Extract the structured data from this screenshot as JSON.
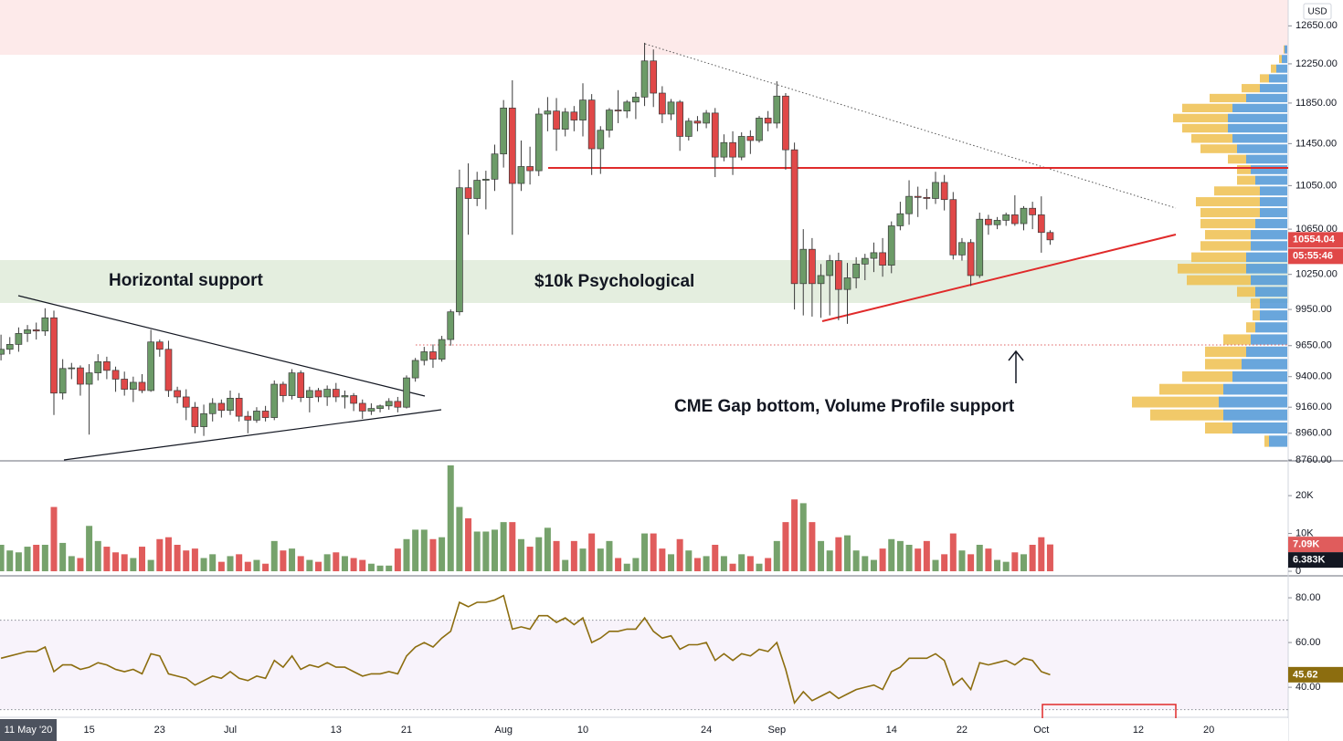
{
  "chart_data": {
    "type": "candlestick",
    "currency": "USD",
    "cursor_date_label": "11 May '20",
    "countdown": "05:55:46",
    "annotations": [
      "Horizontal support",
      "$10k Psychological",
      "CME Gap bottom, Volume Profile support"
    ],
    "categories": [
      null,
      null,
      null,
      null,
      null,
      null,
      null,
      null,
      null,
      null,
      "15",
      null,
      null,
      null,
      null,
      null,
      null,
      null,
      "23",
      null,
      null,
      null,
      null,
      null,
      null,
      null,
      "Jul",
      null,
      null,
      null,
      null,
      null,
      null,
      null,
      null,
      null,
      null,
      null,
      "13",
      null,
      null,
      null,
      null,
      null,
      null,
      null,
      "21",
      null,
      null,
      null,
      null,
      null,
      null,
      null,
      null,
      null,
      null,
      "Aug",
      null,
      null,
      null,
      null,
      null,
      null,
      null,
      null,
      "10",
      null,
      null,
      null,
      null,
      null,
      null,
      null,
      null,
      null,
      null,
      null,
      null,
      null,
      "24",
      null,
      null,
      null,
      null,
      null,
      null,
      null,
      "Sep",
      null,
      null,
      null,
      null,
      null,
      null,
      null,
      null,
      null,
      null,
      null,
      null,
      "14",
      null,
      null,
      null,
      null,
      null,
      null,
      null,
      "22",
      null,
      null,
      null,
      null,
      null,
      null,
      null,
      null,
      "Oct",
      null,
      null,
      null,
      null,
      null,
      null,
      null,
      null,
      null,
      null,
      "12",
      null,
      null,
      null,
      null,
      null,
      null,
      null,
      "20"
    ],
    "open": [
      9580,
      9620,
      9660,
      9750,
      9780,
      9770,
      9880,
      9270,
      9465,
      9470,
      9340,
      9430,
      9520,
      9450,
      9380,
      9300,
      9355,
      9290,
      9680,
      9620,
      9290,
      9240,
      9160,
      9010,
      9110,
      9190,
      9135,
      9230,
      9090,
      9060,
      9130,
      9080,
      9340,
      9250,
      9430,
      9235,
      9290,
      9240,
      9300,
      9240,
      9250,
      9190,
      9130,
      9150,
      9170,
      9205,
      9160,
      9390,
      9530,
      9600,
      9540,
      9700,
      9930,
      11030,
      10930,
      11100,
      11110,
      11350,
      11800,
      11070,
      11230,
      11190,
      11740,
      11770,
      11590,
      11760,
      11680,
      11880,
      11400,
      11580,
      11780,
      11770,
      11860,
      11910,
      12280,
      11950,
      11740,
      11860,
      11520,
      11670,
      11650,
      11750,
      11320,
      11460,
      11320,
      11520,
      11480,
      11700,
      11650,
      11920,
      11390,
      10170,
      10470,
      10170,
      10240,
      10370,
      10120,
      10220,
      10340,
      10390,
      10440,
      10330,
      10680,
      10790,
      10950,
      10940,
      10930,
      11080,
      10920,
      10420,
      10530,
      10240,
      10740,
      10690,
      10730,
      10780,
      10700,
      10840,
      10780,
      10620,
      null,
      null,
      null,
      null,
      null,
      null,
      null,
      null,
      null,
      null,
      null,
      null,
      null,
      null,
      null,
      null,
      null,
      null
    ],
    "high": [
      9740,
      9720,
      9800,
      9820,
      9840,
      9960,
      9940,
      9540,
      9510,
      9490,
      9500,
      9580,
      9560,
      9480,
      9440,
      9400,
      9420,
      9780,
      9700,
      9690,
      9320,
      9300,
      9200,
      9180,
      9230,
      9220,
      9290,
      9270,
      9130,
      9160,
      9170,
      9370,
      9360,
      9460,
      9450,
      9320,
      9310,
      9330,
      9350,
      9290,
      9270,
      9220,
      9190,
      9180,
      9230,
      9240,
      9410,
      9550,
      9640,
      9660,
      9730,
      9950,
      11200,
      11260,
      11180,
      11190,
      11440,
      11880,
      12080,
      11480,
      11420,
      11800,
      11910,
      11900,
      11800,
      11820,
      12050,
      11940,
      11620,
      11800,
      11980,
      11880,
      11960,
      12470,
      12400,
      12020,
      11890,
      11880,
      11700,
      11720,
      11780,
      11800,
      11540,
      11570,
      11560,
      11580,
      11720,
      11770,
      12070,
      11950,
      11460,
      10650,
      10570,
      10340,
      10420,
      10440,
      10350,
      10400,
      10430,
      10530,
      10570,
      10720,
      10900,
      11100,
      11040,
      11020,
      11180,
      11150,
      10990,
      10570,
      10560,
      10800,
      10780,
      10760,
      10800,
      10960,
      10860,
      10900,
      10950,
      10640,
      null,
      null,
      null,
      null,
      null,
      null,
      null,
      null,
      null,
      null,
      null,
      null,
      null,
      null,
      null,
      null,
      null,
      null
    ],
    "low": [
      9530,
      9580,
      9600,
      9680,
      9700,
      9730,
      9100,
      9220,
      9380,
      9250,
      8950,
      9370,
      9380,
      9280,
      9250,
      9200,
      9270,
      9280,
      9560,
      9240,
      9190,
      9060,
      8960,
      8940,
      9050,
      9080,
      9100,
      9050,
      8960,
      9040,
      9050,
      9060,
      9200,
      9220,
      9200,
      9120,
      9200,
      9170,
      9200,
      9150,
      9130,
      9070,
      9100,
      9120,
      9140,
      9120,
      9150,
      9360,
      9490,
      9470,
      9520,
      9650,
      9900,
      10600,
      10860,
      10830,
      11000,
      11220,
      10600,
      11000,
      11060,
      11140,
      11570,
      11380,
      11520,
      11570,
      11520,
      11150,
      11160,
      11510,
      11650,
      11700,
      11690,
      11820,
      11810,
      11650,
      11680,
      11380,
      11480,
      11570,
      11600,
      11130,
      11280,
      11150,
      11290,
      11350,
      11460,
      11570,
      11600,
      11200,
      9950,
      9900,
      9890,
      9880,
      9900,
      9860,
      9830,
      10130,
      10200,
      10270,
      10230,
      10260,
      10640,
      10690,
      10760,
      10830,
      10880,
      10820,
      10380,
      10370,
      10150,
      10220,
      10600,
      10650,
      10680,
      10680,
      10640,
      10650,
      10440,
      10510,
      null,
      null,
      null,
      null,
      null,
      null,
      null,
      null,
      null,
      null,
      null,
      null,
      null,
      null,
      null,
      null,
      null,
      null
    ],
    "close": [
      9620,
      9660,
      9750,
      9780,
      9770,
      9880,
      9270,
      9465,
      9470,
      9340,
      9430,
      9520,
      9450,
      9380,
      9300,
      9355,
      9290,
      9680,
      9620,
      9290,
      9240,
      9160,
      9010,
      9110,
      9190,
      9135,
      9230,
      9090,
      9060,
      9130,
      9080,
      9340,
      9250,
      9430,
      9235,
      9290,
      9240,
      9300,
      9240,
      9250,
      9190,
      9130,
      9150,
      9170,
      9205,
      9160,
      9390,
      9530,
      9600,
      9540,
      9700,
      9930,
      11030,
      10930,
      11100,
      11110,
      11350,
      11800,
      11070,
      11230,
      11190,
      11740,
      11770,
      11590,
      11760,
      11680,
      11880,
      11400,
      11580,
      11780,
      11770,
      11860,
      11910,
      12280,
      11950,
      11740,
      11860,
      11520,
      11670,
      11650,
      11750,
      11320,
      11460,
      11320,
      11520,
      11480,
      11700,
      11650,
      11920,
      11390,
      10170,
      10470,
      10170,
      10240,
      10370,
      10120,
      10220,
      10340,
      10390,
      10440,
      10330,
      10680,
      10790,
      10950,
      10940,
      10930,
      11080,
      10920,
      10420,
      10530,
      10240,
      10740,
      10690,
      10730,
      10780,
      10700,
      10840,
      10780,
      10620,
      10554.04,
      null,
      null,
      null,
      null,
      null,
      null,
      null,
      null,
      null,
      null,
      null,
      null,
      null,
      null,
      null,
      null,
      null,
      null
    ],
    "up_color": "#6c9b68",
    "down_color": "#e04848",
    "wick_color": "#3a3a3a",
    "log_scale": true,
    "ylim": [
      8760,
      12930
    ],
    "yticks": [
      {
        "value": 12650,
        "label": "12650.00"
      },
      {
        "value": 12250,
        "label": "12250.00"
      },
      {
        "value": 11850,
        "label": "11850.00"
      },
      {
        "value": 11450,
        "label": "11450.00"
      },
      {
        "value": 11050,
        "label": "11050.00"
      },
      {
        "value": 10650,
        "label": "10650.00"
      },
      {
        "value": 10250,
        "label": "10250.00"
      },
      {
        "value": 9950,
        "label": "9950.00"
      },
      {
        "value": 9650,
        "label": "9650.00"
      },
      {
        "value": 9400,
        "label": "9400.00"
      },
      {
        "value": 9160,
        "label": "9160.00"
      },
      {
        "value": 8960,
        "label": "8960.00"
      },
      {
        "value": 8760,
        "label": "8760.00"
      }
    ],
    "volume_profile": {
      "levels": [
        8900,
        9000,
        9100,
        9200,
        9300,
        9400,
        9500,
        9600,
        9700,
        9800,
        9900,
        10000,
        10100,
        10200,
        10300,
        10400,
        10500,
        10600,
        10700,
        10800,
        10900,
        11000,
        11100,
        11200,
        11300,
        11400,
        11500,
        11600,
        11700,
        11800,
        11900,
        12000,
        12100,
        12200,
        12300,
        12400
      ],
      "up": [
        20,
        60,
        70,
        75,
        70,
        60,
        50,
        45,
        40,
        35,
        30,
        30,
        35,
        40,
        45,
        45,
        40,
        40,
        35,
        30,
        30,
        30,
        35,
        40,
        45,
        55,
        60,
        65,
        65,
        60,
        45,
        30,
        20,
        12,
        6,
        3
      ],
      "down": [
        5,
        30,
        80,
        95,
        70,
        55,
        40,
        45,
        30,
        10,
        8,
        10,
        20,
        70,
        75,
        60,
        55,
        50,
        60,
        65,
        70,
        50,
        20,
        15,
        20,
        40,
        45,
        50,
        60,
        55,
        40,
        20,
        10,
        6,
        3,
        1
      ],
      "up_color": "#4f97d6",
      "down_color": "#efc04f"
    },
    "volume": {
      "values": [
        7000,
        5500,
        5000,
        6500,
        7000,
        7000,
        17000,
        7500,
        4000,
        3500,
        12000,
        8000,
        6500,
        5000,
        4500,
        3500,
        6500,
        3000,
        8500,
        9000,
        7000,
        5500,
        6000,
        3500,
        4500,
        2500,
        4000,
        4500,
        2500,
        3000,
        2000,
        8000,
        5500,
        6000,
        4000,
        3000,
        2500,
        4500,
        5000,
        4000,
        3500,
        3000,
        2000,
        1500,
        1500,
        6000,
        8500,
        11000,
        11000,
        8500,
        9000,
        28000,
        17000,
        14000,
        10500,
        10500,
        11000,
        13000,
        13000,
        8500,
        6500,
        9000,
        11500,
        8000,
        3000,
        8000,
        6000,
        10000,
        6000,
        8000,
        3500,
        2000,
        3500,
        10000,
        10000,
        6000,
        4500,
        8500,
        5500,
        3500,
        4000,
        7000,
        4000,
        2000,
        4500,
        4000,
        2000,
        3500,
        8000,
        13000,
        19000,
        18000,
        13000,
        8000,
        5500,
        9000,
        9500,
        5500,
        4000,
        3000,
        6000,
        8500,
        8000,
        7000,
        6000,
        8000,
        3000,
        4500,
        10000,
        5500,
        4500,
        7000,
        6000,
        3000,
        2500,
        5000,
        4500,
        7000,
        9000,
        7090,
        null,
        null,
        null,
        null,
        null,
        null,
        null,
        null,
        null,
        null,
        null,
        null,
        null,
        null,
        null,
        null,
        null,
        null
      ],
      "last_value_label": "7.09K",
      "average": {
        "value": 6383,
        "label": "6.383K"
      },
      "up_color": "#76a26c",
      "down_color": "#e05c5c",
      "ylim": [
        0,
        29200
      ],
      "yticks": [
        0,
        {
          "value": 10000,
          "label": "10K"
        },
        {
          "value": 20000,
          "label": "20K"
        }
      ]
    },
    "rsi": {
      "values": [
        53,
        54,
        55,
        56,
        56,
        58,
        47,
        50,
        50,
        48,
        49,
        51,
        50,
        48,
        47,
        48,
        46,
        55,
        54,
        46,
        45,
        44,
        41,
        43,
        45,
        44,
        47,
        44,
        43,
        45,
        44,
        52,
        49,
        54,
        48,
        50,
        49,
        51,
        49,
        49,
        47,
        45,
        46,
        46,
        47,
        46,
        54,
        58,
        60,
        58,
        62,
        65,
        78,
        76,
        78,
        78,
        79,
        81,
        66,
        67,
        66,
        72,
        72,
        69,
        71,
        68,
        71,
        60,
        62,
        65,
        65,
        66,
        66,
        71,
        65,
        62,
        63,
        57,
        59,
        59,
        60,
        52,
        55,
        52,
        55,
        54,
        57,
        56,
        60,
        48,
        33,
        38,
        34,
        36,
        38,
        35,
        37,
        39,
        40,
        41,
        39,
        47,
        49,
        53,
        53,
        53,
        55,
        52,
        41,
        44,
        39,
        51,
        50,
        51,
        52,
        50,
        53,
        52,
        47,
        45.62,
        null,
        null,
        null,
        null,
        null,
        null,
        null,
        null,
        null,
        null,
        null,
        null,
        null,
        null,
        null,
        null,
        null,
        null
      ],
      "color": "#8c6d0f",
      "band_color": "#f8f3fb",
      "bands": [
        30,
        70
      ],
      "ylim": [
        27,
        89
      ],
      "yticks": [
        {
          "value": 80,
          "label": "80.00"
        },
        {
          "value": 60,
          "label": "60.00"
        },
        {
          "value": 40,
          "label": "40.00"
        }
      ]
    }
  }
}
